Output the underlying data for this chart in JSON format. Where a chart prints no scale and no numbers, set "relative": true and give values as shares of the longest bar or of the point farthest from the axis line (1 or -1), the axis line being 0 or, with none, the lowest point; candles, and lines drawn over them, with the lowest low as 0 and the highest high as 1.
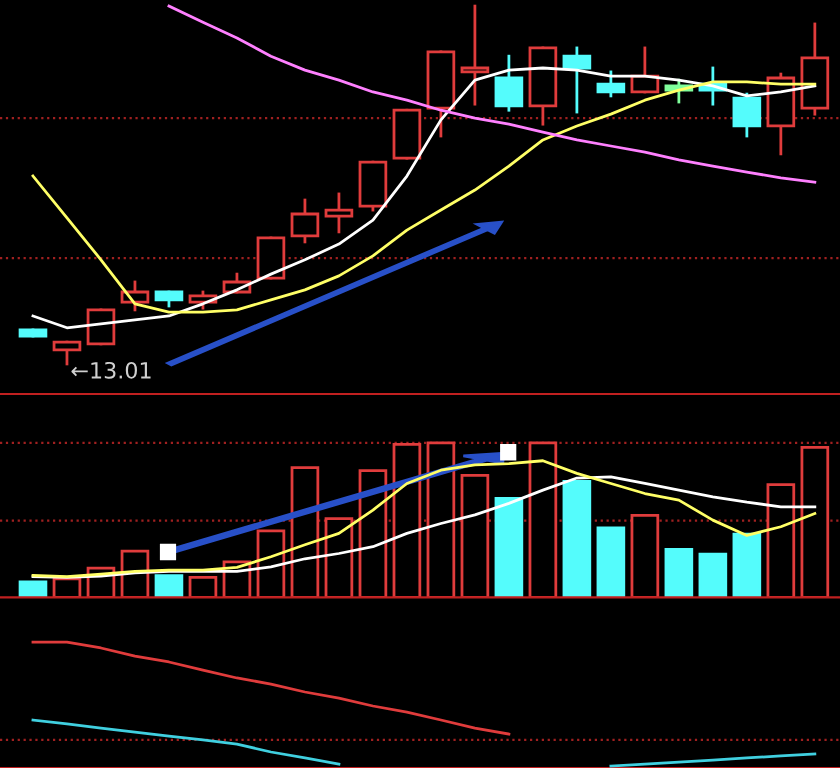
{
  "chart_data": [
    {
      "type": "candlestick",
      "relative": true,
      "categories": [
        null,
        null,
        null,
        null,
        null,
        null,
        null,
        null,
        null,
        null,
        null,
        null,
        null,
        null,
        null,
        null,
        null,
        null,
        null,
        null,
        null,
        null,
        null,
        null
      ],
      "ohlc": [
        [
          0.095,
          0.095,
          0.078,
          0.078
        ],
        [
          0.039,
          0.061,
          0,
          0.061
        ],
        [
          0.056,
          0.151,
          0.056,
          0.151
        ],
        [
          0.173,
          0.229,
          0.151,
          0.201
        ],
        [
          0.201,
          0.201,
          0.162,
          0.179
        ],
        [
          0.173,
          0.201,
          0.156,
          0.19
        ],
        [
          0.201,
          0.251,
          0.201,
          0.229
        ],
        [
          0.24,
          0.352,
          0.24,
          0.352
        ],
        [
          0.358,
          0.458,
          0.341,
          0.419
        ],
        [
          0.413,
          0.475,
          0.369,
          0.43
        ],
        [
          0.441,
          0.564,
          0.43,
          0.564
        ],
        [
          0.575,
          0.709,
          0.575,
          0.709
        ],
        [
          0.715,
          0.872,
          0.637,
          0.872
        ],
        [
          0.816,
          1.0,
          0.726,
          0.827
        ],
        [
          0.799,
          0.86,
          0.709,
          0.721
        ],
        [
          0.721,
          0.883,
          0.67,
          0.883
        ],
        [
          0.86,
          0.883,
          0.704,
          0.827
        ],
        [
          0.782,
          0.816,
          0.749,
          0.76
        ],
        [
          0.76,
          0.883,
          0.76,
          0.804
        ],
        [
          0.777,
          0.793,
          0.732,
          0.765
        ],
        [
          0.782,
          0.827,
          0.726,
          0.765
        ],
        [
          0.743,
          0.754,
          0.637,
          0.665
        ],
        [
          0.665,
          0.81,
          0.587,
          0.799
        ],
        [
          0.715,
          0.95,
          0.698,
          0.855
        ]
      ],
      "colors": [
        "#54fcfc",
        "#e03c3c",
        "#e03c3c",
        "#e03c3c",
        "#54fcfc",
        "#e03c3c",
        "#e03c3c",
        "#e03c3c",
        "#e03c3c",
        "#e03c3c",
        "#e03c3c",
        "#e03c3c",
        "#e03c3c",
        "#e03c3c",
        "#54fcfc",
        "#e03c3c",
        "#54fcfc",
        "#54fcfc",
        "#e03c3c",
        "#80ff9c",
        "#54fcfc",
        "#54fcfc",
        "#e03c3c",
        "#e03c3c"
      ],
      "series": [
        {
          "type": "line",
          "color": "#ffffff",
          "values": [
            0.134,
            0.101,
            0.112,
            0.123,
            0.134,
            0.168,
            0.207,
            0.251,
            0.291,
            0.335,
            0.402,
            0.525,
            0.682,
            0.793,
            0.821,
            0.827,
            0.821,
            0.804,
            0.804,
            0.793,
            0.777,
            0.749,
            0.76,
            0.777
          ]
        },
        {
          "type": "line",
          "color": "#ffff66",
          "values": [
            0.525,
            0.408,
            0.291,
            0.168,
            0.145,
            0.145,
            0.151,
            0.179,
            0.207,
            0.246,
            0.302,
            0.374,
            0.43,
            0.486,
            0.553,
            0.626,
            0.665,
            0.698,
            0.737,
            0.765,
            0.788,
            0.788,
            0.782,
            0.782
          ]
        },
        {
          "type": "line",
          "color": "#ff80ff",
          "values": [
            null,
            null,
            null,
            null,
            1.0,
            0.955,
            0.911,
            0.86,
            0.821,
            0.793,
            0.76,
            0.737,
            0.709,
            0.687,
            0.67,
            0.648,
            0.626,
            0.609,
            0.592,
            0.57,
            0.553,
            0.536,
            0.52,
            0.508
          ]
        }
      ],
      "annotations": [
        "←13.01"
      ],
      "ref_lines": [
        {
          "axis": "y",
          "value": 0.687,
          "color": "#a02020",
          "line_style": "dotted"
        },
        {
          "axis": "y",
          "value": 0.296,
          "color": "#a02020",
          "line_style": "dotted"
        }
      ]
    },
    {
      "type": "bar",
      "relative": true,
      "categories": [
        null,
        null,
        null,
        null,
        null,
        null,
        null,
        null,
        null,
        null,
        null,
        null,
        null,
        null,
        null,
        null,
        null,
        null,
        null,
        null,
        null,
        null,
        null,
        null
      ],
      "series": [
        {
          "type": "bar",
          "values": [
            0.1,
            0.12,
            0.19,
            0.3,
            0.14,
            0.13,
            0.23,
            0.43,
            0.84,
            0.51,
            0.82,
            0.99,
            1.0,
            0.79,
            0.64,
            1.0,
            0.75,
            0.45,
            0.53,
            0.31,
            0.28,
            0.41,
            0.73,
            0.97
          ],
          "colors": [
            "#54fcfc",
            "#e03c3c",
            "#e03c3c",
            "#e03c3c",
            "#54fcfc",
            "#e03c3c",
            "#e03c3c",
            "#e03c3c",
            "#e03c3c",
            "#e03c3c",
            "#e03c3c",
            "#e03c3c",
            "#e03c3c",
            "#e03c3c",
            "#54fcfc",
            "#e03c3c",
            "#54fcfc",
            "#54fcfc",
            "#e03c3c",
            "#54fcfc",
            "#54fcfc",
            "#54fcfc",
            "#e03c3c",
            "#e03c3c"
          ]
        },
        {
          "type": "line",
          "color": "#ffffff",
          "values": [
            0.134,
            0.129,
            0.138,
            0.159,
            0.168,
            0.168,
            0.168,
            0.198,
            0.25,
            0.284,
            0.328,
            0.414,
            0.478,
            0.534,
            0.608,
            0.694,
            0.772,
            0.78,
            0.737,
            0.694,
            0.651,
            0.616,
            0.586,
            0.586
          ]
        },
        {
          "type": "line",
          "color": "#ffff66",
          "values": [
            0.142,
            0.134,
            0.151,
            0.168,
            0.177,
            0.177,
            0.194,
            0.263,
            0.341,
            0.414,
            0.565,
            0.737,
            0.823,
            0.858,
            0.866,
            0.884,
            0.802,
            0.737,
            0.672,
            0.629,
            0.5,
            0.401,
            0.457,
            0.543
          ]
        }
      ],
      "ref_lines": [
        {
          "axis": "y",
          "value": 1.0,
          "color": "#a02020",
          "line_style": "dotted"
        },
        {
          "axis": "y",
          "value": 0.496,
          "color": "#a02020",
          "line_style": "dotted"
        }
      ]
    },
    {
      "type": "line",
      "relative": true,
      "categories": [
        null,
        null,
        null,
        null,
        null,
        null,
        null,
        null,
        null,
        null,
        null,
        null,
        null,
        null,
        null,
        null,
        null,
        null,
        null,
        null,
        null,
        null,
        null,
        null
      ],
      "series": [
        {
          "color": "#e03c3c",
          "values": [
            1.0,
            1.0,
            0.952,
            0.887,
            0.839,
            0.774,
            0.71,
            0.661,
            0.597,
            0.548,
            0.484,
            0.435,
            0.371,
            0.306,
            0.258,
            null,
            null,
            null,
            null,
            null,
            null,
            null,
            null,
            null
          ]
        },
        {
          "color": "#40d0e0",
          "values": [
            0.371,
            0.339,
            0.306,
            0.274,
            0.242,
            0.21,
            0.177,
            0.113,
            0.065,
            0.016,
            null,
            null,
            null,
            null,
            null,
            null,
            null,
            0,
            0.016,
            0.032,
            0.048,
            0.065,
            0.081,
            0.097
          ]
        }
      ],
      "ref_lines": [
        {
          "axis": "y",
          "value": 0.21,
          "color": "#a02020",
          "line_style": "dotted"
        }
      ]
    }
  ]
}
